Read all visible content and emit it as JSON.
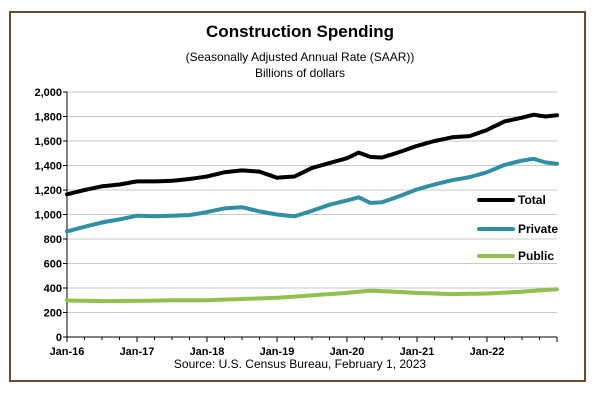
{
  "chart_data": {
    "type": "line",
    "title": "Construction Spending",
    "subtitle": "(Seasonally Adjusted Annual Rate (SAAR))",
    "subtitle2": "Billions of dollars",
    "source": "Source: U.S. Census  Bureau, February  1, 2023",
    "ylim": [
      0,
      2000
    ],
    "yticks": [
      "2,000",
      "1,800",
      "1,600",
      "1,400",
      "1,200",
      "1,000",
      "800",
      "600",
      "400",
      "200",
      "0"
    ],
    "ytick_values": [
      2000,
      1800,
      1600,
      1400,
      1200,
      1000,
      800,
      600,
      400,
      200,
      0
    ],
    "xlabels": [
      "Jan-16",
      "Jan-17",
      "Jan-18",
      "Jan-19",
      "Jan-20",
      "Jan-21",
      "Jan-22"
    ],
    "xtick_month_index": [
      0,
      12,
      24,
      36,
      48,
      60,
      72
    ],
    "x_start": "Jan-16",
    "x_end": "Dec-22",
    "grid": true,
    "legend_position": "right",
    "series": [
      {
        "name": "Total",
        "color": "#000000",
        "key": [
          [
            0,
            1165
          ],
          [
            3,
            1200
          ],
          [
            6,
            1230
          ],
          [
            9,
            1245
          ],
          [
            12,
            1270
          ],
          [
            15,
            1270
          ],
          [
            18,
            1275
          ],
          [
            21,
            1290
          ],
          [
            24,
            1310
          ],
          [
            27,
            1345
          ],
          [
            30,
            1360
          ],
          [
            33,
            1350
          ],
          [
            36,
            1300
          ],
          [
            39,
            1310
          ],
          [
            42,
            1380
          ],
          [
            45,
            1420
          ],
          [
            48,
            1460
          ],
          [
            50,
            1505
          ],
          [
            52,
            1470
          ],
          [
            54,
            1465
          ],
          [
            57,
            1510
          ],
          [
            60,
            1560
          ],
          [
            63,
            1600
          ],
          [
            66,
            1630
          ],
          [
            69,
            1640
          ],
          [
            72,
            1690
          ],
          [
            75,
            1760
          ],
          [
            78,
            1790
          ],
          [
            80,
            1815
          ],
          [
            82,
            1800
          ],
          [
            84,
            1810
          ]
        ]
      },
      {
        "name": "Private",
        "color": "#2f8fa3",
        "key": [
          [
            0,
            862
          ],
          [
            3,
            900
          ],
          [
            6,
            935
          ],
          [
            9,
            960
          ],
          [
            12,
            990
          ],
          [
            15,
            985
          ],
          [
            18,
            990
          ],
          [
            21,
            995
          ],
          [
            24,
            1020
          ],
          [
            27,
            1050
          ],
          [
            30,
            1060
          ],
          [
            33,
            1025
          ],
          [
            36,
            1000
          ],
          [
            39,
            985
          ],
          [
            42,
            1030
          ],
          [
            45,
            1080
          ],
          [
            48,
            1115
          ],
          [
            50,
            1140
          ],
          [
            52,
            1095
          ],
          [
            54,
            1100
          ],
          [
            57,
            1150
          ],
          [
            60,
            1205
          ],
          [
            63,
            1245
          ],
          [
            66,
            1280
          ],
          [
            69,
            1305
          ],
          [
            72,
            1345
          ],
          [
            75,
            1405
          ],
          [
            78,
            1440
          ],
          [
            80,
            1455
          ],
          [
            82,
            1425
          ],
          [
            84,
            1415
          ]
        ]
      },
      {
        "name": "Public",
        "color": "#92c04c",
        "key": [
          [
            0,
            298
          ],
          [
            6,
            293
          ],
          [
            12,
            295
          ],
          [
            18,
            300
          ],
          [
            24,
            300
          ],
          [
            30,
            310
          ],
          [
            36,
            320
          ],
          [
            42,
            340
          ],
          [
            48,
            360
          ],
          [
            52,
            378
          ],
          [
            56,
            370
          ],
          [
            60,
            360
          ],
          [
            66,
            350
          ],
          [
            72,
            355
          ],
          [
            78,
            370
          ],
          [
            84,
            390
          ]
        ]
      }
    ]
  }
}
